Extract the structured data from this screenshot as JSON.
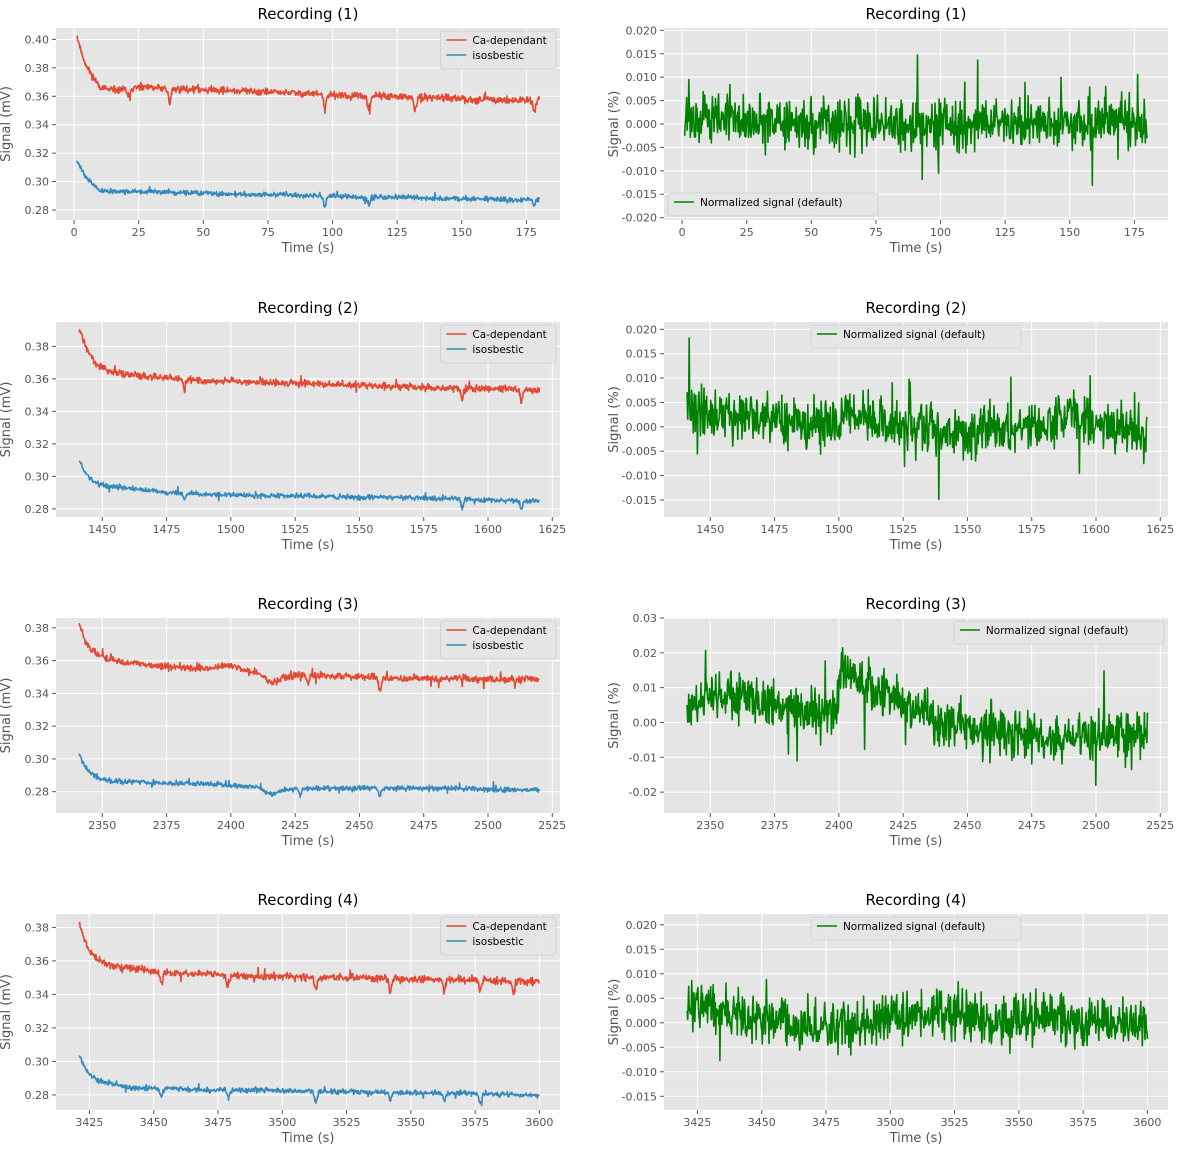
{
  "figure": {
    "background": "#ffffff",
    "axes_facecolor": "#e5e5e5",
    "grid_color": "#ffffff",
    "text_color": "#555555"
  },
  "chart_data": [
    {
      "type": "line",
      "title": "Recording (1)",
      "xlabel": "Time (s)",
      "ylabel": "Signal (mV)",
      "xlim": [
        -7,
        188
      ],
      "ylim": [
        0.273,
        0.408
      ],
      "xticks": [
        0,
        25,
        50,
        75,
        100,
        125,
        150,
        175
      ],
      "yticks": [
        0.28,
        0.3,
        0.32,
        0.34,
        0.36,
        0.38,
        0.4
      ],
      "ytick_decimals": 2,
      "grid": true,
      "legend": "top-right",
      "series": [
        {
          "name": "Ca-dependant",
          "color": "#e24a33",
          "x": [
            1,
            3,
            5,
            8,
            10,
            12,
            15,
            20,
            25,
            30,
            40,
            50,
            60,
            75,
            90,
            100,
            110,
            120,
            130,
            140,
            150,
            160,
            170,
            180
          ],
          "y": [
            0.403,
            0.39,
            0.38,
            0.372,
            0.367,
            0.365,
            0.364,
            0.365,
            0.366,
            0.366,
            0.365,
            0.365,
            0.364,
            0.363,
            0.362,
            0.361,
            0.36,
            0.36,
            0.359,
            0.359,
            0.358,
            0.358,
            0.357,
            0.358
          ],
          "noise": 0.0022,
          "dips": [
            [
              21,
              -0.006
            ],
            [
              37,
              -0.01
            ],
            [
              97,
              -0.011
            ],
            [
              114,
              -0.009
            ],
            [
              132,
              -0.009
            ],
            [
              178,
              -0.008
            ]
          ],
          "seed": 11
        },
        {
          "name": "isosbestic",
          "color": "#348abd",
          "x": [
            1,
            3,
            5,
            8,
            10,
            12,
            15,
            20,
            25,
            30,
            40,
            50,
            60,
            75,
            90,
            100,
            110,
            120,
            130,
            140,
            150,
            160,
            170,
            180
          ],
          "y": [
            0.315,
            0.308,
            0.302,
            0.297,
            0.294,
            0.293,
            0.293,
            0.293,
            0.293,
            0.293,
            0.292,
            0.292,
            0.291,
            0.291,
            0.29,
            0.29,
            0.289,
            0.289,
            0.289,
            0.288,
            0.288,
            0.288,
            0.287,
            0.288
          ],
          "noise": 0.0015,
          "dips": [
            [
              97,
              -0.008
            ],
            [
              114,
              -0.006
            ],
            [
              178,
              -0.005
            ]
          ],
          "seed": 12
        }
      ]
    },
    {
      "type": "line",
      "title": "Recording (1)",
      "xlabel": "Time (s)",
      "ylabel": "Signal (%)",
      "xlim": [
        -7,
        188
      ],
      "ylim": [
        -0.0205,
        0.0205
      ],
      "xticks": [
        0,
        25,
        50,
        75,
        100,
        125,
        150,
        175
      ],
      "yticks": [
        -0.02,
        -0.015,
        -0.01,
        -0.005,
        0.0,
        0.005,
        0.01,
        0.015,
        0.02
      ],
      "ytick_decimals": 3,
      "grid": true,
      "legend": "bottom-left",
      "series": [
        {
          "name": "Normalized signal (default)",
          "color": "#008000",
          "x": [
            1,
            20,
            40,
            60,
            80,
            100,
            120,
            140,
            160,
            180
          ],
          "y": [
            0.002,
            0.001,
            0.0,
            0.0,
            0.0,
            0.0,
            0.0,
            0.0,
            0.0,
            0.0
          ],
          "noise": 0.0045,
          "seed": 21
        }
      ]
    },
    {
      "type": "line",
      "title": "Recording (2)",
      "xlabel": "Time (s)",
      "ylabel": "Signal (mV)",
      "xlim": [
        1432,
        1628
      ],
      "ylim": [
        0.275,
        0.395
      ],
      "xticks": [
        1450,
        1475,
        1500,
        1525,
        1550,
        1575,
        1600,
        1625
      ],
      "yticks": [
        0.28,
        0.3,
        0.32,
        0.34,
        0.36,
        0.38
      ],
      "ytick_decimals": 2,
      "grid": true,
      "legend": "top-right",
      "series": [
        {
          "name": "Ca-dependant",
          "color": "#e24a33",
          "x": [
            1441,
            1443,
            1445,
            1448,
            1452,
            1458,
            1465,
            1475,
            1490,
            1510,
            1530,
            1550,
            1570,
            1590,
            1610,
            1620
          ],
          "y": [
            0.391,
            0.382,
            0.375,
            0.369,
            0.365,
            0.363,
            0.362,
            0.361,
            0.359,
            0.358,
            0.357,
            0.356,
            0.355,
            0.354,
            0.354,
            0.353
          ],
          "noise": 0.0018,
          "dips": [
            [
              1482,
              -0.008
            ],
            [
              1590,
              -0.007
            ],
            [
              1613,
              -0.008
            ]
          ],
          "seed": 31
        },
        {
          "name": "isosbestic",
          "color": "#348abd",
          "x": [
            1441,
            1443,
            1445,
            1448,
            1452,
            1458,
            1465,
            1475,
            1490,
            1510,
            1530,
            1550,
            1570,
            1590,
            1610,
            1620
          ],
          "y": [
            0.31,
            0.303,
            0.299,
            0.296,
            0.294,
            0.293,
            0.292,
            0.29,
            0.289,
            0.288,
            0.288,
            0.287,
            0.287,
            0.286,
            0.285,
            0.285
          ],
          "noise": 0.0013,
          "dips": [
            [
              1482,
              -0.004
            ],
            [
              1590,
              -0.005
            ],
            [
              1613,
              -0.005
            ]
          ],
          "seed": 32
        }
      ]
    },
    {
      "type": "line",
      "title": "Recording (2)",
      "xlabel": "Time (s)",
      "ylabel": "Signal (%)",
      "xlim": [
        1432,
        1628
      ],
      "ylim": [
        -0.0185,
        0.0215
      ],
      "xticks": [
        1450,
        1475,
        1500,
        1525,
        1550,
        1575,
        1600,
        1625
      ],
      "yticks": [
        -0.015,
        -0.01,
        -0.005,
        0.0,
        0.005,
        0.01,
        0.015,
        0.02
      ],
      "ytick_decimals": 3,
      "grid": true,
      "legend": "top-center",
      "series": [
        {
          "name": "Normalized signal (default)",
          "color": "#008000",
          "x": [
            1441,
            1460,
            1480,
            1500,
            1502,
            1520,
            1540,
            1560,
            1580,
            1590,
            1600,
            1620
          ],
          "y": [
            0.004,
            0.002,
            0.001,
            0.0,
            0.004,
            0.0,
            -0.001,
            -0.001,
            0.0,
            0.003,
            0.001,
            -0.001
          ],
          "noise": 0.0042,
          "seed": 41
        }
      ]
    },
    {
      "type": "line",
      "title": "Recording (3)",
      "xlabel": "Time (s)",
      "ylabel": "Signal (mV)",
      "xlim": [
        2332,
        2528
      ],
      "ylim": [
        0.267,
        0.386
      ],
      "xticks": [
        2350,
        2375,
        2400,
        2425,
        2450,
        2475,
        2500,
        2525
      ],
      "yticks": [
        0.28,
        0.3,
        0.32,
        0.34,
        0.36,
        0.38
      ],
      "ytick_decimals": 2,
      "grid": true,
      "legend": "top-right",
      "series": [
        {
          "name": "Ca-dependant",
          "color": "#e24a33",
          "x": [
            2341,
            2343,
            2345,
            2348,
            2352,
            2358,
            2365,
            2375,
            2390,
            2400,
            2405,
            2410,
            2416,
            2420,
            2430,
            2450,
            2470,
            2490,
            2510,
            2520
          ],
          "y": [
            0.382,
            0.374,
            0.368,
            0.364,
            0.361,
            0.359,
            0.358,
            0.356,
            0.355,
            0.357,
            0.354,
            0.353,
            0.346,
            0.35,
            0.351,
            0.35,
            0.349,
            0.349,
            0.348,
            0.349
          ],
          "noise": 0.0018,
          "dips": [
            [
              2458,
              -0.008
            ],
            [
              2430,
              -0.005
            ]
          ],
          "seed": 51
        },
        {
          "name": "isosbestic",
          "color": "#348abd",
          "x": [
            2341,
            2343,
            2345,
            2348,
            2352,
            2358,
            2365,
            2375,
            2390,
            2400,
            2410,
            2416,
            2420,
            2430,
            2450,
            2470,
            2490,
            2510,
            2520
          ],
          "y": [
            0.303,
            0.296,
            0.292,
            0.289,
            0.287,
            0.286,
            0.286,
            0.285,
            0.285,
            0.284,
            0.283,
            0.278,
            0.281,
            0.282,
            0.282,
            0.282,
            0.282,
            0.281,
            0.281
          ],
          "noise": 0.0013,
          "dips": [
            [
              2458,
              -0.005
            ],
            [
              2427,
              -0.004
            ]
          ],
          "seed": 52
        }
      ]
    },
    {
      "type": "line",
      "title": "Recording (3)",
      "xlabel": "Time (s)",
      "ylabel": "Signal (%)",
      "xlim": [
        2332,
        2528
      ],
      "ylim": [
        -0.026,
        0.03
      ],
      "xticks": [
        2350,
        2375,
        2400,
        2425,
        2450,
        2475,
        2500,
        2525
      ],
      "yticks": [
        -0.02,
        -0.01,
        0.0,
        0.01,
        0.02,
        0.03
      ],
      "ytick_decimals": 2,
      "grid": true,
      "legend": "top-right",
      "series": [
        {
          "name": "Normalized signal (default)",
          "color": "#008000",
          "x": [
            2341,
            2355,
            2370,
            2385,
            2399,
            2401,
            2410,
            2425,
            2440,
            2460,
            2480,
            2500,
            2520
          ],
          "y": [
            0.004,
            0.008,
            0.006,
            0.003,
            0.003,
            0.016,
            0.01,
            0.006,
            0.0,
            -0.003,
            -0.005,
            -0.004,
            -0.004
          ],
          "noise": 0.0058,
          "seed": 61
        }
      ]
    },
    {
      "type": "line",
      "title": "Recording (4)",
      "xlabel": "Time (s)",
      "ylabel": "Signal (mV)",
      "xlim": [
        3412,
        3608
      ],
      "ylim": [
        0.271,
        0.388
      ],
      "xticks": [
        3425,
        3450,
        3475,
        3500,
        3525,
        3550,
        3575,
        3600
      ],
      "yticks": [
        0.28,
        0.3,
        0.32,
        0.34,
        0.36,
        0.38
      ],
      "ytick_decimals": 2,
      "grid": true,
      "legend": "top-right",
      "series": [
        {
          "name": "Ca-dependant",
          "color": "#e24a33",
          "x": [
            3421,
            3423,
            3425,
            3428,
            3432,
            3438,
            3445,
            3455,
            3470,
            3490,
            3510,
            3530,
            3550,
            3570,
            3590,
            3600
          ],
          "y": [
            0.382,
            0.373,
            0.366,
            0.361,
            0.358,
            0.356,
            0.355,
            0.353,
            0.352,
            0.351,
            0.35,
            0.35,
            0.349,
            0.349,
            0.348,
            0.348
          ],
          "noise": 0.0018,
          "dips": [
            [
              3453,
              -0.008
            ],
            [
              3479,
              -0.007
            ],
            [
              3513,
              -0.007
            ],
            [
              3542,
              -0.008
            ],
            [
              3563,
              -0.007
            ],
            [
              3577,
              -0.007
            ],
            [
              3590,
              -0.008
            ]
          ],
          "seed": 71
        },
        {
          "name": "isosbestic",
          "color": "#348abd",
          "x": [
            3421,
            3423,
            3425,
            3428,
            3432,
            3438,
            3445,
            3455,
            3470,
            3490,
            3510,
            3530,
            3550,
            3570,
            3590,
            3600
          ],
          "y": [
            0.304,
            0.297,
            0.292,
            0.289,
            0.287,
            0.285,
            0.284,
            0.284,
            0.283,
            0.283,
            0.282,
            0.282,
            0.281,
            0.281,
            0.28,
            0.28
          ],
          "noise": 0.0013,
          "dips": [
            [
              3453,
              -0.005
            ],
            [
              3479,
              -0.005
            ],
            [
              3513,
              -0.006
            ],
            [
              3542,
              -0.005
            ],
            [
              3563,
              -0.005
            ],
            [
              3577,
              -0.006
            ]
          ],
          "seed": 72
        }
      ]
    },
    {
      "type": "line",
      "title": "Recording (4)",
      "xlabel": "Time (s)",
      "ylabel": "Signal (%)",
      "xlim": [
        3412,
        3608
      ],
      "ylim": [
        -0.0178,
        0.0222
      ],
      "xticks": [
        3425,
        3450,
        3475,
        3500,
        3525,
        3550,
        3575,
        3600
      ],
      "yticks": [
        -0.015,
        -0.01,
        -0.005,
        0.0,
        0.005,
        0.01,
        0.015,
        0.02
      ],
      "ytick_decimals": 3,
      "grid": true,
      "legend": "top-center",
      "series": [
        {
          "name": "Normalized signal (default)",
          "color": "#008000",
          "x": [
            3421,
            3440,
            3460,
            3480,
            3500,
            3520,
            3540,
            3560,
            3580,
            3600
          ],
          "y": [
            0.004,
            0.002,
            0.0,
            -0.001,
            0.001,
            0.002,
            0.0,
            0.001,
            0.001,
            -0.001
          ],
          "noise": 0.0042,
          "seed": 81
        }
      ]
    }
  ]
}
